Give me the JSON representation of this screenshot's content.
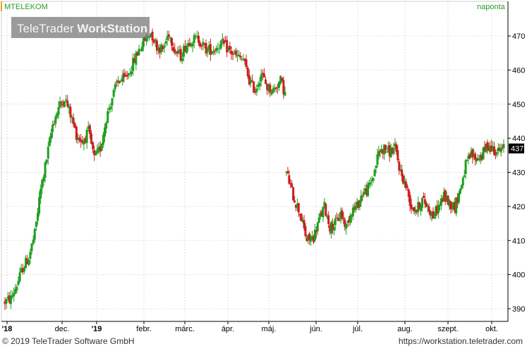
{
  "header": {
    "symbol": "MTELEKOM",
    "watermark_light": "TeleTrader ",
    "watermark_bold": "WorkStation",
    "interval": "naponta"
  },
  "footer": {
    "copyright": "© 2019 TeleTrader Software GmbH",
    "url": "https://workstation.teletrader.com"
  },
  "colors": {
    "up": "#1f9e1f",
    "down": "#cc1f1f",
    "grid": "#c8c8c8",
    "axis": "#000000",
    "symbol_text": "#2a9a2a",
    "marker_bg": "#000000"
  },
  "chart_data": {
    "type": "candlestick",
    "title": "MTELEKOM",
    "interval": "naponta",
    "ylim": [
      386,
      477
    ],
    "y_ticks": [
      390,
      400,
      410,
      420,
      430,
      440,
      450,
      460,
      470
    ],
    "last_value": 437,
    "x_labels": [
      "'18",
      "dec.",
      "'19",
      "febr.",
      "márc.",
      "ápr.",
      "máj.",
      "jún.",
      "júl.",
      "aug.",
      "szept.",
      "okt."
    ],
    "grid": true,
    "segments": [
      {
        "name": "before-gap",
        "start": 392,
        "end": 453,
        "path": [
          [
            0,
            392
          ],
          [
            4,
            393
          ],
          [
            8,
            397
          ],
          [
            12,
            402
          ],
          [
            16,
            405
          ],
          [
            20,
            412
          ],
          [
            24,
            425
          ],
          [
            28,
            434
          ],
          [
            32,
            444
          ],
          [
            36,
            449
          ],
          [
            40,
            452
          ],
          [
            44,
            447
          ],
          [
            48,
            441
          ],
          [
            52,
            439
          ],
          [
            56,
            442
          ],
          [
            60,
            434
          ],
          [
            64,
            437
          ],
          [
            68,
            446
          ],
          [
            72,
            452
          ],
          [
            76,
            457
          ],
          [
            80,
            457
          ],
          [
            84,
            460
          ],
          [
            86,
            462
          ],
          [
            90,
            466
          ],
          [
            94,
            469
          ],
          [
            98,
            471
          ],
          [
            102,
            467
          ],
          [
            106,
            466
          ],
          [
            110,
            471
          ],
          [
            114,
            466
          ],
          [
            118,
            464
          ],
          [
            121,
            467
          ],
          [
            125,
            469
          ],
          [
            130,
            469
          ],
          [
            135,
            466
          ],
          [
            140,
            466
          ],
          [
            145,
            468
          ],
          [
            150,
            466
          ],
          [
            155,
            464
          ],
          [
            160,
            463
          ],
          [
            164,
            457
          ],
          [
            168,
            454
          ],
          [
            172,
            459
          ],
          [
            176,
            455
          ],
          [
            180,
            454
          ],
          [
            185,
            457
          ],
          [
            188,
            453
          ]
        ]
      },
      {
        "name": "after-gap",
        "start": 430,
        "end": 437,
        "path": [
          [
            0,
            430
          ],
          [
            5,
            423
          ],
          [
            10,
            418
          ],
          [
            15,
            410
          ],
          [
            20,
            411
          ],
          [
            24,
            416
          ],
          [
            28,
            420
          ],
          [
            32,
            414
          ],
          [
            36,
            415
          ],
          [
            40,
            418
          ],
          [
            44,
            414
          ],
          [
            48,
            419
          ],
          [
            52,
            420
          ],
          [
            56,
            424
          ],
          [
            60,
            425
          ],
          [
            64,
            429
          ],
          [
            68,
            436
          ],
          [
            72,
            437
          ],
          [
            76,
            436
          ],
          [
            80,
            437
          ],
          [
            84,
            430
          ],
          [
            88,
            426
          ],
          [
            92,
            420
          ],
          [
            96,
            419
          ],
          [
            100,
            422
          ],
          [
            104,
            420
          ],
          [
            108,
            417
          ],
          [
            112,
            420
          ],
          [
            116,
            423
          ],
          [
            120,
            421
          ],
          [
            124,
            420
          ],
          [
            128,
            425
          ],
          [
            132,
            432
          ],
          [
            136,
            435
          ],
          [
            140,
            434
          ],
          [
            144,
            435
          ],
          [
            148,
            438
          ],
          [
            152,
            437
          ],
          [
            156,
            436
          ],
          [
            160,
            437
          ]
        ]
      }
    ]
  }
}
